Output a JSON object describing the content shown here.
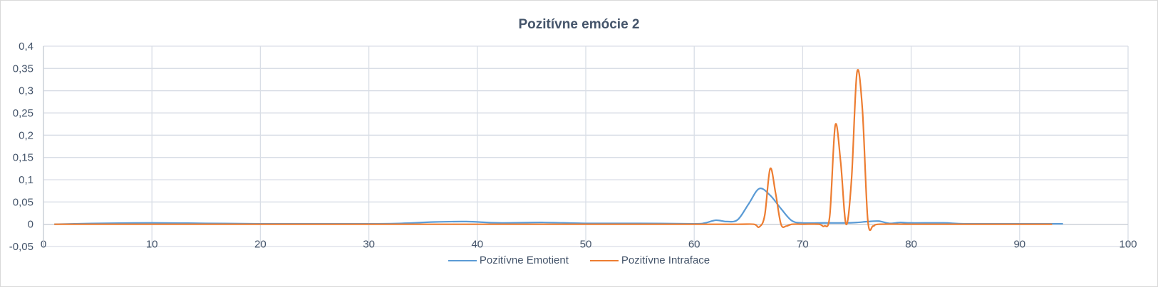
{
  "chart_data": {
    "type": "line",
    "title": "Pozitívne emócie 2",
    "xlabel": "",
    "ylabel": "",
    "xlim": [
      0,
      100
    ],
    "ylim": [
      -0.05,
      0.4
    ],
    "x_ticks": [
      0,
      10,
      20,
      30,
      40,
      50,
      60,
      70,
      80,
      90,
      100
    ],
    "x_tick_labels": [
      "0",
      "10",
      "20",
      "30",
      "40",
      "50",
      "60",
      "70",
      "80",
      "90",
      "100"
    ],
    "y_ticks": [
      -0.05,
      0,
      0.05,
      0.1,
      0.15,
      0.2,
      0.25,
      0.3,
      0.35,
      0.4
    ],
    "y_tick_labels": [
      "-0,05",
      "0",
      "0,05",
      "0,1",
      "0,15",
      "0,2",
      "0,25",
      "0,3",
      "0,35",
      "0,4"
    ],
    "grid": true,
    "legend_position": "bottom",
    "series": [
      {
        "name": "Pozitívne Emotient",
        "color": "#5b9bd5",
        "points": [
          [
            1,
            0.0
          ],
          [
            5,
            0.002
          ],
          [
            10,
            0.003
          ],
          [
            15,
            0.002
          ],
          [
            20,
            0.001
          ],
          [
            25,
            0.001
          ],
          [
            30,
            0.001
          ],
          [
            33,
            0.002
          ],
          [
            36,
            0.005
          ],
          [
            39,
            0.006
          ],
          [
            42,
            0.003
          ],
          [
            46,
            0.004
          ],
          [
            50,
            0.002
          ],
          [
            55,
            0.002
          ],
          [
            60,
            0.001
          ],
          [
            61,
            0.003
          ],
          [
            62,
            0.009
          ],
          [
            63,
            0.006
          ],
          [
            64,
            0.01
          ],
          [
            65,
            0.045
          ],
          [
            66,
            0.08
          ],
          [
            67,
            0.065
          ],
          [
            68,
            0.035
          ],
          [
            69,
            0.008
          ],
          [
            70,
            0.003
          ],
          [
            72,
            0.003
          ],
          [
            74,
            0.003
          ],
          [
            75,
            0.004
          ],
          [
            76,
            0.006
          ],
          [
            77,
            0.007
          ],
          [
            78,
            0.002
          ],
          [
            79,
            0.004
          ],
          [
            80,
            0.003
          ],
          [
            83,
            0.003
          ],
          [
            85,
            0.001
          ],
          [
            90,
            0.001
          ],
          [
            94,
            0.001
          ]
        ]
      },
      {
        "name": "Pozitívne Intraface",
        "color": "#ed7d31",
        "points": [
          [
            1,
            0.0
          ],
          [
            10,
            0.0
          ],
          [
            20,
            0.0
          ],
          [
            30,
            0.0
          ],
          [
            40,
            0.0
          ],
          [
            50,
            0.0
          ],
          [
            60,
            0.0
          ],
          [
            64,
            0.0
          ],
          [
            65.5,
            0.0
          ],
          [
            66,
            -0.006
          ],
          [
            66.5,
            0.02
          ],
          [
            67,
            0.125
          ],
          [
            67.5,
            0.07
          ],
          [
            68,
            0.0
          ],
          [
            68.5,
            -0.004
          ],
          [
            69,
            0.0
          ],
          [
            70,
            0.0
          ],
          [
            71.5,
            0.0
          ],
          [
            72,
            -0.004
          ],
          [
            72.5,
            0.02
          ],
          [
            73,
            0.222
          ],
          [
            73.5,
            0.14
          ],
          [
            74,
            0.0
          ],
          [
            74.5,
            0.1
          ],
          [
            75,
            0.34
          ],
          [
            75.5,
            0.26
          ],
          [
            76,
            0.01
          ],
          [
            76.5,
            -0.004
          ],
          [
            77,
            0.0
          ],
          [
            80,
            0.0
          ],
          [
            85,
            0.0
          ],
          [
            90,
            0.0
          ],
          [
            93,
            0.0
          ]
        ]
      }
    ]
  }
}
